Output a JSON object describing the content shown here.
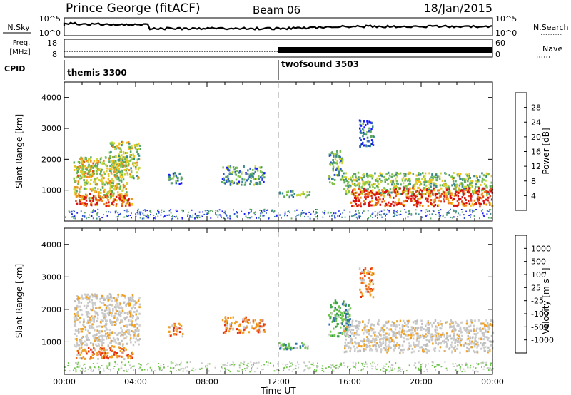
{
  "header": {
    "site": "Prince George (fitACF)",
    "beam": "Beam 06",
    "date": "18/Jan/2015"
  },
  "sky_panel": {
    "left_label": "N.Sky",
    "right_label": "N.Search",
    "left_ticks": [
      "10^5",
      "10^0"
    ],
    "right_ticks": [
      "10^5",
      "10^0"
    ]
  },
  "freq_panel": {
    "left_label_line1": "Freq.",
    "left_label_line2": "[MHz]",
    "right_label": "Nave",
    "left_ticks": [
      "18",
      "8"
    ],
    "right_ticks": [
      "60",
      "0"
    ]
  },
  "cpid": {
    "label": "CPID",
    "segments": [
      {
        "name": "themis 3300",
        "start_hour": 0
      },
      {
        "name": "twofsound 3503",
        "start_hour": 12
      }
    ]
  },
  "chart_data": [
    {
      "type": "heatmap",
      "name": "power",
      "xlabel": "",
      "ylabel": "Slant Range [km]",
      "xlim": [
        0,
        24
      ],
      "ylim": [
        0,
        4500
      ],
      "yticks": [
        "1000",
        "2000",
        "3000",
        "4000"
      ],
      "colorbar": {
        "label": "Power [dB]",
        "ticks": [
          "28",
          "24",
          "20",
          "16",
          "12",
          "8",
          "4"
        ],
        "colors": [
          "#1a1aff",
          "#2a55c8",
          "#3a8a8a",
          "#5aa860",
          "#7ec24a",
          "#c8d838",
          "#f0c020",
          "#f08a18",
          "#e84818",
          "#d81010"
        ]
      },
      "regions": [
        {
          "t0": 0.5,
          "t1": 3.5,
          "r0": 700,
          "r1": 2100,
          "level": 0.55
        },
        {
          "t0": 0.6,
          "t1": 3.8,
          "r0": 500,
          "r1": 900,
          "level": 0.85
        },
        {
          "t0": 2.5,
          "t1": 4.2,
          "r0": 1400,
          "r1": 2600,
          "level": 0.5
        },
        {
          "t0": 0.7,
          "t1": 1.6,
          "r0": 1400,
          "r1": 2100,
          "level": 0.6
        },
        {
          "t0": 5.8,
          "t1": 6.6,
          "r0": 1200,
          "r1": 1600,
          "level": 0.25
        },
        {
          "t0": 8.8,
          "t1": 11.2,
          "r0": 1200,
          "r1": 1800,
          "level": 0.3
        },
        {
          "t0": 12.0,
          "t1": 13.8,
          "r0": 800,
          "r1": 1000,
          "level": 0.4
        },
        {
          "t0": 14.8,
          "t1": 15.6,
          "r0": 1200,
          "r1": 2300,
          "level": 0.35
        },
        {
          "t0": 15.6,
          "t1": 24.0,
          "r0": 900,
          "r1": 1600,
          "level": 0.45
        },
        {
          "t0": 16.0,
          "t1": 24.0,
          "r0": 500,
          "r1": 1100,
          "level": 0.9
        },
        {
          "t0": 16.5,
          "t1": 17.3,
          "r0": 2400,
          "r1": 3300,
          "level": 0.2
        }
      ]
    },
    {
      "type": "heatmap",
      "name": "velocity",
      "xlabel": "Time UT",
      "ylabel": "Slant Range [km]",
      "xlim": [
        0,
        24
      ],
      "ylim": [
        0,
        4500
      ],
      "xticks": [
        "00:00",
        "04:00",
        "08:00",
        "12:00",
        "16:00",
        "20:00",
        "00:00"
      ],
      "yticks": [
        "1000",
        "2000",
        "3000",
        "4000"
      ],
      "colorbar": {
        "label": "Velocity [m s⁻¹]",
        "ticks": [
          "1000",
          "500",
          "100",
          "25",
          "-25",
          "-100",
          "-500",
          "-1000"
        ],
        "colors": [
          "#1f3fbf",
          "#2c6fa8",
          "#38a04a",
          "#6fc44a",
          "#c8c8c8",
          "#c8c8c8",
          "#f0a020",
          "#f06818",
          "#e82e10",
          "#d80808"
        ]
      },
      "regions": [
        {
          "t0": 0.5,
          "t1": 4.2,
          "r0": 900,
          "r1": 2500,
          "cls": "gray"
        },
        {
          "t0": 0.6,
          "t1": 3.8,
          "r0": 500,
          "r1": 900,
          "cls": "orange"
        },
        {
          "t0": 5.8,
          "t1": 6.6,
          "r0": 1200,
          "r1": 1600,
          "cls": "orange"
        },
        {
          "t0": 8.8,
          "t1": 11.2,
          "r0": 1300,
          "r1": 1800,
          "cls": "orange"
        },
        {
          "t0": 12.0,
          "t1": 13.8,
          "r0": 800,
          "r1": 1000,
          "cls": "green"
        },
        {
          "t0": 14.8,
          "t1": 16.0,
          "r0": 1200,
          "r1": 2300,
          "cls": "green"
        },
        {
          "t0": 15.6,
          "t1": 24.0,
          "r0": 700,
          "r1": 1700,
          "cls": "gray"
        },
        {
          "t0": 16.5,
          "t1": 17.3,
          "r0": 2400,
          "r1": 3300,
          "cls": "orange"
        }
      ]
    }
  ]
}
